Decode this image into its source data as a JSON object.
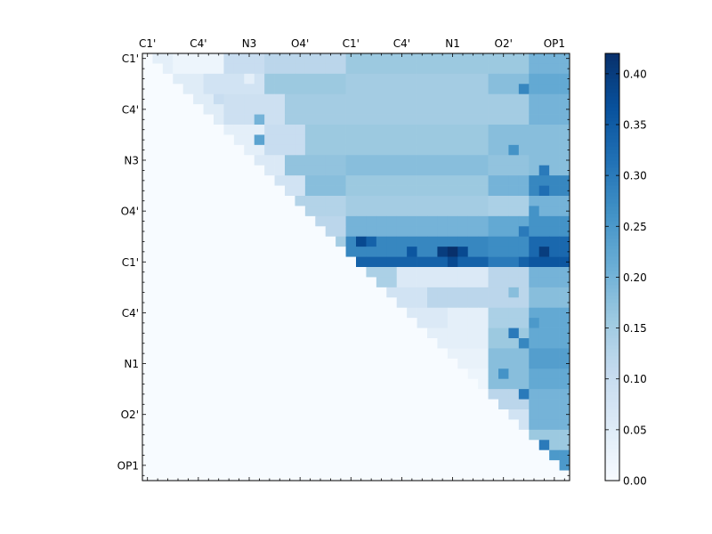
{
  "chart_data": {
    "type": "heatmap",
    "title": "",
    "xlabel": "",
    "ylabel": "",
    "n": 42,
    "row_tick_labels": [
      "C1'",
      "C4'",
      "N3",
      "O4'",
      "C1'",
      "C4'",
      "N1",
      "O2'",
      "OP1"
    ],
    "col_tick_labels": [
      "C1'",
      "C4'",
      "N3",
      "O4'",
      "C1'",
      "C4'",
      "N1",
      "O2'",
      "OP1"
    ],
    "colormap": "Blues",
    "vmin": 0.0,
    "vmax": 0.42,
    "colorbar_ticks": [
      "0.00",
      "0.05",
      "0.10",
      "0.15",
      "0.20",
      "0.25",
      "0.30",
      "0.35",
      "0.40"
    ],
    "colorbar_tick_values": [
      0.0,
      0.05,
      0.1,
      0.15,
      0.2,
      0.25,
      0.3,
      0.35,
      0.4
    ],
    "layout": "upper-triangle",
    "row_bands": [
      {
        "rows": [
          0,
          1
        ],
        "sections": [
          [
            1,
            3,
            0.04
          ],
          [
            3,
            8,
            0.02
          ],
          [
            8,
            12,
            0.1
          ],
          [
            12,
            20,
            0.12
          ],
          [
            20,
            34,
            0.16
          ],
          [
            34,
            38,
            0.16
          ],
          [
            38,
            42,
            0.2
          ]
        ]
      },
      {
        "rows": [
          2,
          3
        ],
        "sections": [
          [
            3,
            6,
            0.05
          ],
          [
            6,
            12,
            0.08
          ],
          [
            12,
            20,
            0.16
          ],
          [
            20,
            34,
            0.15
          ],
          [
            34,
            38,
            0.18
          ],
          [
            38,
            42,
            0.22
          ]
        ]
      },
      {
        "rows": [
          4,
          6
        ],
        "sections": [
          [
            5,
            8,
            0.05
          ],
          [
            8,
            14,
            0.09
          ],
          [
            14,
            20,
            0.15
          ],
          [
            20,
            34,
            0.15
          ],
          [
            34,
            38,
            0.15
          ],
          [
            38,
            42,
            0.2
          ]
        ]
      },
      {
        "rows": [
          7,
          9
        ],
        "sections": [
          [
            8,
            12,
            0.04
          ],
          [
            12,
            16,
            0.1
          ],
          [
            16,
            20,
            0.16
          ],
          [
            20,
            34,
            0.16
          ],
          [
            34,
            38,
            0.18
          ],
          [
            38,
            42,
            0.18
          ]
        ]
      },
      {
        "rows": [
          10,
          11
        ],
        "sections": [
          [
            11,
            14,
            0.06
          ],
          [
            14,
            20,
            0.17
          ],
          [
            20,
            34,
            0.18
          ],
          [
            34,
            38,
            0.17
          ],
          [
            38,
            42,
            0.18
          ]
        ]
      },
      {
        "rows": [
          12,
          13
        ],
        "sections": [
          [
            13,
            16,
            0.08
          ],
          [
            16,
            20,
            0.18
          ],
          [
            20,
            34,
            0.16
          ],
          [
            34,
            38,
            0.2
          ],
          [
            38,
            42,
            0.28
          ]
        ]
      },
      {
        "rows": [
          14,
          15
        ],
        "sections": [
          [
            15,
            20,
            0.13
          ],
          [
            20,
            34,
            0.15
          ],
          [
            34,
            38,
            0.14
          ],
          [
            38,
            42,
            0.2
          ]
        ]
      },
      {
        "rows": [
          16,
          17
        ],
        "sections": [
          [
            17,
            20,
            0.12
          ],
          [
            20,
            34,
            0.2
          ],
          [
            34,
            38,
            0.22
          ],
          [
            38,
            42,
            0.26
          ]
        ]
      },
      {
        "rows": [
          18,
          19
        ],
        "sections": [
          [
            19,
            20,
            0.15
          ],
          [
            20,
            34,
            0.28
          ],
          [
            34,
            38,
            0.27
          ],
          [
            38,
            42,
            0.33
          ]
        ]
      },
      {
        "rows": [
          20,
          20
        ],
        "sections": [
          [
            20,
            34,
            0.34
          ],
          [
            34,
            38,
            0.3
          ],
          [
            38,
            42,
            0.36
          ]
        ]
      },
      {
        "rows": [
          21,
          22
        ],
        "sections": [
          [
            22,
            25,
            0.14
          ],
          [
            25,
            34,
            0.06
          ],
          [
            34,
            38,
            0.12
          ],
          [
            38,
            42,
            0.2
          ]
        ]
      },
      {
        "rows": [
          23,
          24
        ],
        "sections": [
          [
            24,
            28,
            0.08
          ],
          [
            28,
            34,
            0.12
          ],
          [
            34,
            38,
            0.12
          ],
          [
            38,
            42,
            0.18
          ]
        ]
      },
      {
        "rows": [
          25,
          26
        ],
        "sections": [
          [
            26,
            30,
            0.06
          ],
          [
            30,
            34,
            0.04
          ],
          [
            34,
            38,
            0.14
          ],
          [
            38,
            42,
            0.22
          ]
        ]
      },
      {
        "rows": [
          27,
          28
        ],
        "sections": [
          [
            28,
            34,
            0.04
          ],
          [
            34,
            38,
            0.16
          ],
          [
            38,
            42,
            0.22
          ]
        ]
      },
      {
        "rows": [
          29,
          30
        ],
        "sections": [
          [
            30,
            34,
            0.03
          ],
          [
            34,
            38,
            0.18
          ],
          [
            38,
            42,
            0.24
          ]
        ]
      },
      {
        "rows": [
          31,
          32
        ],
        "sections": [
          [
            32,
            34,
            0.02
          ],
          [
            34,
            38,
            0.18
          ],
          [
            38,
            42,
            0.22
          ]
        ]
      },
      {
        "rows": [
          33,
          34
        ],
        "sections": [
          [
            34,
            38,
            0.12
          ],
          [
            38,
            42,
            0.2
          ]
        ]
      },
      {
        "rows": [
          35,
          36
        ],
        "sections": [
          [
            36,
            38,
            0.08
          ],
          [
            38,
            42,
            0.2
          ]
        ]
      },
      {
        "rows": [
          37,
          38
        ],
        "sections": [
          [
            38,
            42,
            0.16
          ]
        ]
      },
      {
        "rows": [
          39,
          40
        ],
        "sections": [
          [
            40,
            42,
            0.25
          ]
        ]
      }
    ],
    "cell_overrides": [
      [
        18,
        21,
        0.38
      ],
      [
        18,
        22,
        0.34
      ],
      [
        19,
        29,
        0.4
      ],
      [
        19,
        30,
        0.42
      ],
      [
        19,
        31,
        0.38
      ],
      [
        19,
        26,
        0.36
      ],
      [
        19,
        39,
        0.4
      ],
      [
        20,
        30,
        0.38
      ],
      [
        20,
        37,
        0.34
      ],
      [
        6,
        11,
        0.2
      ],
      [
        8,
        11,
        0.23
      ],
      [
        11,
        39,
        0.3
      ],
      [
        13,
        39,
        0.32
      ],
      [
        16,
        38,
        0.26
      ],
      [
        17,
        37,
        0.3
      ],
      [
        15,
        38,
        0.26
      ],
      [
        23,
        36,
        0.18
      ],
      [
        26,
        38,
        0.25
      ],
      [
        27,
        36,
        0.3
      ],
      [
        28,
        37,
        0.28
      ],
      [
        31,
        35,
        0.26
      ],
      [
        33,
        37,
        0.3
      ],
      [
        38,
        39,
        0.3
      ],
      [
        38,
        38,
        0.3
      ],
      [
        38,
        37,
        0.32
      ],
      [
        3,
        37,
        0.28
      ],
      [
        9,
        36,
        0.26
      ],
      [
        4,
        7,
        0.1
      ],
      [
        2,
        10,
        0.04
      ]
    ]
  }
}
